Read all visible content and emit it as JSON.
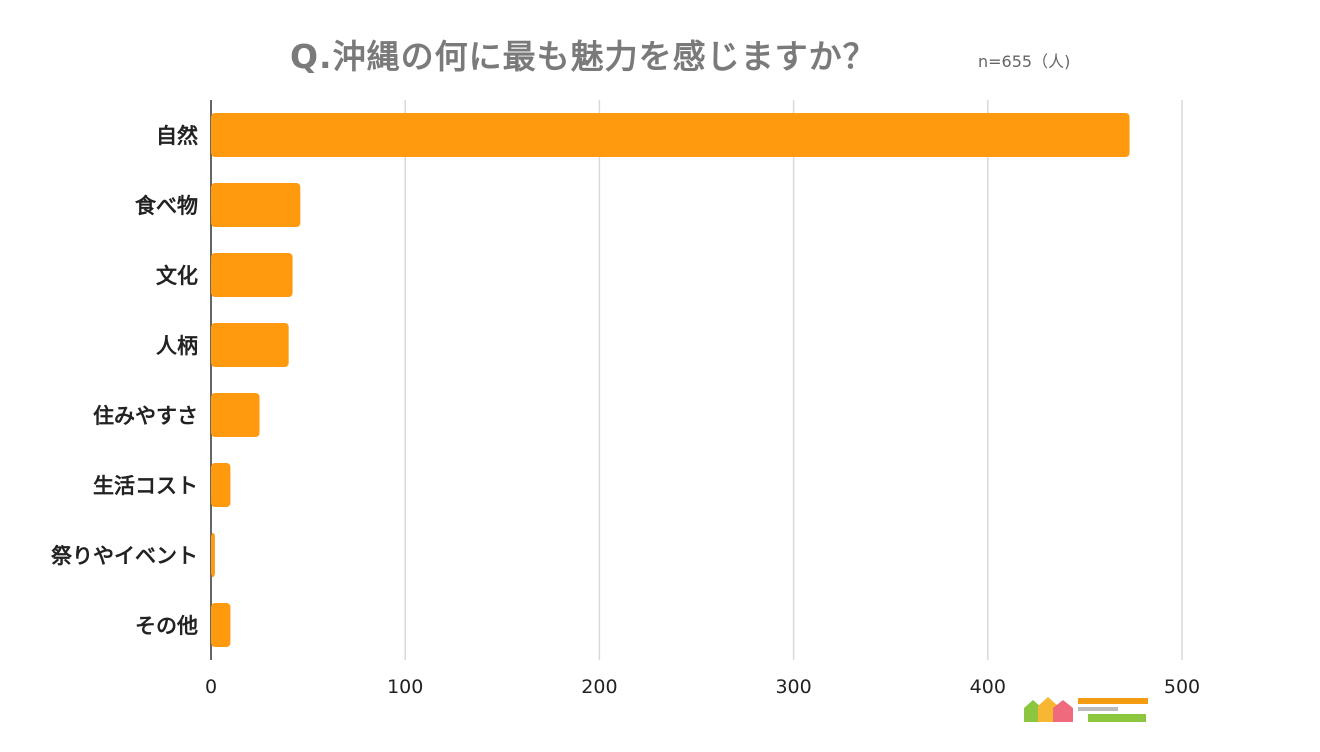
{
  "chart_data": {
    "type": "bar",
    "orientation": "horizontal",
    "title": "Q.沖縄の何に最も魅力を感じますか？",
    "note": "n=655（人)",
    "categories": [
      "自然",
      "食べ物",
      "文化",
      "人柄",
      "住みやすさ",
      "生活コスト",
      "祭りやイベント",
      "その他"
    ],
    "values": [
      473,
      46,
      42,
      40,
      25,
      10,
      2,
      10
    ],
    "xlim": [
      0,
      500
    ],
    "xticks": [
      "0",
      "100",
      "200",
      "300",
      "400",
      "500"
    ],
    "grid": true,
    "legend": "none",
    "bar_color": "#ff9a0e"
  },
  "colors": {
    "grid": "#d9d9d9",
    "axis": "#333333",
    "label": "#222222"
  }
}
